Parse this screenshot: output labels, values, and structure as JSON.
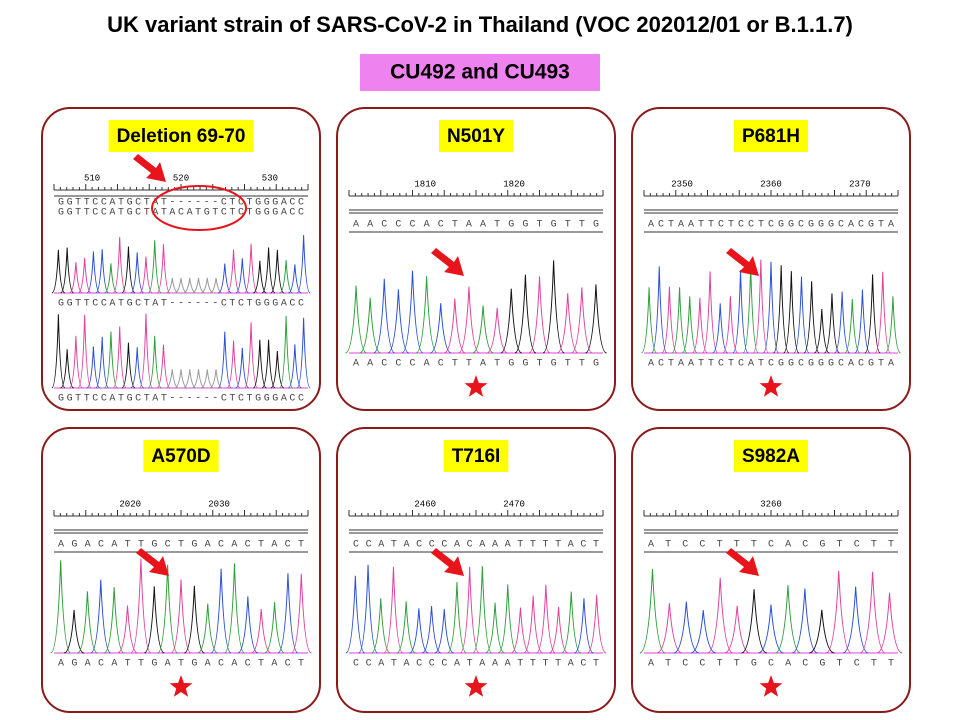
{
  "header": {
    "title": "UK variant strain of SARS-CoV-2 in Thailand (VOC 202012/01 or B.1.1.7)",
    "subtitle": "CU492 and CU493"
  },
  "panels": [
    {
      "label": "Deletion 69-70",
      "ruler": [
        "510",
        "520",
        "530"
      ],
      "tracks": [
        "GGTTCCATGCTAT------CTCTGGGACC",
        "GGTTCCATGCTATACATGTCTCTGGGACC",
        "GGTTCCATGCTAT------CTCTGGGACC",
        "GGTTCCATGCTAT------CTCTGGGACC"
      ]
    },
    {
      "label": "N501Y",
      "ruler": [
        "1810",
        "1820"
      ],
      "tracks": [
        "AACCCACTAATGGTGTTG",
        "AACCCACTTATGGTGTTG"
      ]
    },
    {
      "label": "P681H",
      "ruler": [
        "2350",
        "2360",
        "2370"
      ],
      "tracks": [
        "ACTAATTCTCCTCGGCGGGCACGTA",
        "ACTAATTCTCATCGGCGGGCACGTA"
      ]
    },
    {
      "label": "A570D",
      "ruler": [
        "2020",
        "2030"
      ],
      "tracks": [
        "AGACATTGCTGACACTACT",
        "AGACATTGATGACACTACT"
      ]
    },
    {
      "label": "T716I",
      "ruler": [
        "2460",
        "2470"
      ],
      "tracks": [
        "CCATACCCACAAATTTTACT",
        "CCATACCCATAAATTTTACT"
      ]
    },
    {
      "label": "S982A",
      "ruler": [
        "3260"
      ],
      "tracks": [
        "ATCCTTTCACGTCTT",
        "ATCCTTGCACGTCTT"
      ]
    }
  ]
}
